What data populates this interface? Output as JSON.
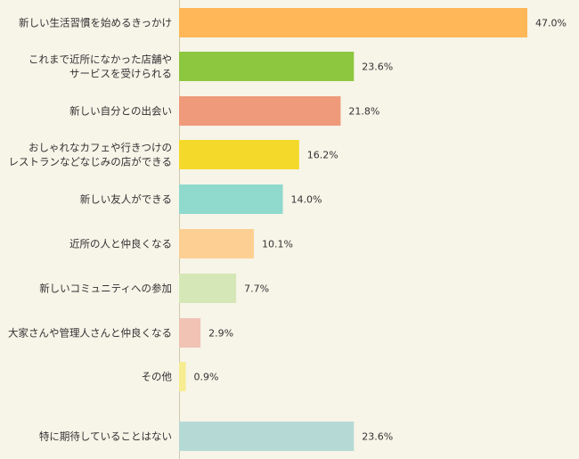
{
  "chart_data": {
    "type": "bar",
    "orientation": "horizontal",
    "unit": "%",
    "xlim": [
      0,
      50
    ],
    "grid": false,
    "legend": "none",
    "categories": [
      [
        "新しい生活習慣を始めるきっかけ"
      ],
      [
        "これまで近所になかった店舗や",
        "サービスを受けられる"
      ],
      [
        "新しい自分との出会い"
      ],
      [
        "おしゃれなカフェや行きつけの",
        "レストランなどなじみの店ができる"
      ],
      [
        "新しい友人ができる"
      ],
      [
        "近所の人と仲良くなる"
      ],
      [
        "新しいコミュニティへの参加"
      ],
      [
        "大家さんや管理人さんと仲良くなる"
      ],
      [
        "その他"
      ],
      [
        "特に期待していることはない"
      ]
    ],
    "values": [
      47.0,
      23.6,
      21.8,
      16.2,
      14.0,
      10.1,
      7.7,
      2.9,
      0.9,
      23.6
    ],
    "value_labels": [
      "47.0%",
      "23.6%",
      "21.8%",
      "16.2%",
      "14.0%",
      "10.1%",
      "7.7%",
      "2.9%",
      "0.9%",
      "23.6%"
    ],
    "colors": [
      "#ffb757",
      "#8dc63f",
      "#ee9a7b",
      "#f4d92a",
      "#8fd9cd",
      "#fdcf92",
      "#d6e7b7",
      "#f0c3b5",
      "#f7ec8f",
      "#b5dad5"
    ]
  }
}
